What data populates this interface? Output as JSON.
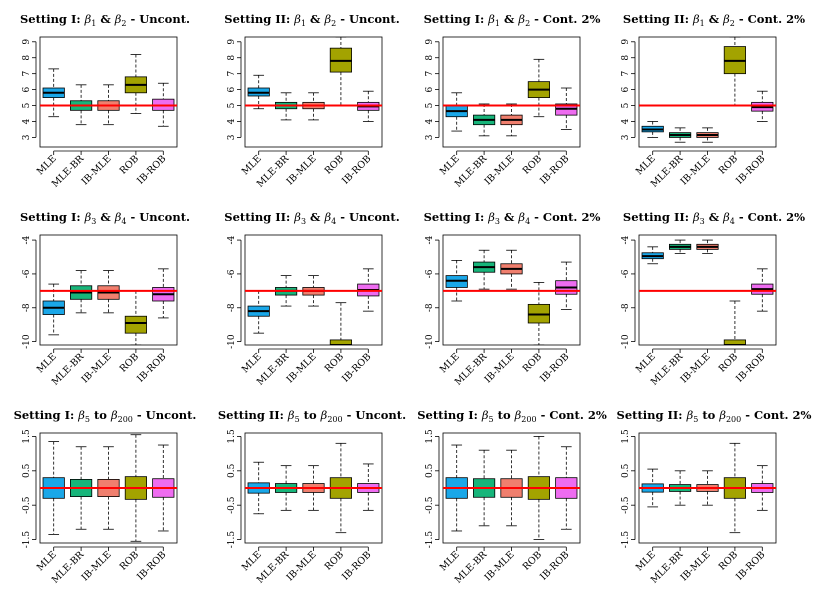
{
  "colors": {
    "MLE": "#1aa7e8",
    "MLE-BR": "#17b57a",
    "IB-MLE": "#f07f6e",
    "ROB": "#a3a300",
    "IB-ROB": "#ee6cf0",
    "reference": "#ff0000"
  },
  "chart_data": [
    {
      "type": "box",
      "title_prefix": "Setting I: ",
      "title_beta": "β",
      "title_sub_a": "1",
      "title_mid": " & ",
      "title_sub_b": "2",
      "title_suffix": " - Uncont.",
      "ylim": [
        2.4,
        9.3
      ],
      "yticks": [
        3,
        4,
        5,
        6,
        7,
        8,
        9
      ],
      "yticklabels": [
        "3",
        "4",
        "5",
        "6",
        "7",
        "8",
        "9"
      ],
      "reference": 5,
      "categories": [
        "MLE",
        "MLE-BR",
        "IB-MLE",
        "ROB",
        "IB-ROB"
      ],
      "boxes": [
        {
          "min": 4.3,
          "q1": 5.5,
          "median": 5.8,
          "q3": 6.1,
          "max": 7.3
        },
        {
          "min": 3.8,
          "q1": 4.7,
          "median": 5.0,
          "q3": 5.3,
          "max": 6.3
        },
        {
          "min": 3.8,
          "q1": 4.7,
          "median": 5.0,
          "q3": 5.3,
          "max": 6.3
        },
        {
          "min": 4.5,
          "q1": 5.8,
          "median": 6.3,
          "q3": 6.8,
          "max": 8.2
        },
        {
          "min": 3.7,
          "q1": 4.7,
          "median": 5.0,
          "q3": 5.4,
          "max": 6.4
        }
      ]
    },
    {
      "type": "box",
      "title_prefix": "Setting II: ",
      "title_beta": "β",
      "title_sub_a": "1",
      "title_mid": " & ",
      "title_sub_b": "2",
      "title_suffix": " - Uncont.",
      "ylim": [
        2.4,
        9.3
      ],
      "yticks": [
        3,
        4,
        5,
        6,
        7,
        8,
        9
      ],
      "yticklabels": [
        "3",
        "4",
        "5",
        "6",
        "7",
        "8",
        "9"
      ],
      "reference": 5,
      "categories": [
        "MLE",
        "MLE-BR",
        "IB-MLE",
        "ROB",
        "IB-ROB"
      ],
      "boxes": [
        {
          "min": 4.8,
          "q1": 5.6,
          "median": 5.8,
          "q3": 6.1,
          "max": 6.9
        },
        {
          "min": 4.1,
          "q1": 4.8,
          "median": 5.0,
          "q3": 5.2,
          "max": 5.8
        },
        {
          "min": 4.1,
          "q1": 4.8,
          "median": 5.0,
          "q3": 5.2,
          "max": 5.8
        },
        {
          "min": 5.0,
          "q1": 7.1,
          "median": 7.8,
          "q3": 8.6,
          "max": 9.3
        },
        {
          "min": 4.0,
          "q1": 4.7,
          "median": 4.95,
          "q3": 5.2,
          "max": 5.9
        }
      ]
    },
    {
      "type": "box",
      "title_prefix": "Setting I: ",
      "title_beta": "β",
      "title_sub_a": "1",
      "title_mid": " & ",
      "title_sub_b": "2",
      "title_suffix": " - Cont. 2%",
      "ylim": [
        2.4,
        9.3
      ],
      "yticks": [
        3,
        4,
        5,
        6,
        7,
        8,
        9
      ],
      "yticklabels": [
        "3",
        "4",
        "5",
        "6",
        "7",
        "8",
        "9"
      ],
      "reference": 5,
      "categories": [
        "MLE",
        "MLE-BR",
        "IB-MLE",
        "ROB",
        "IB-ROB"
      ],
      "boxes": [
        {
          "min": 3.4,
          "q1": 4.3,
          "median": 4.65,
          "q3": 5.0,
          "max": 5.8
        },
        {
          "min": 3.1,
          "q1": 3.8,
          "median": 4.1,
          "q3": 4.4,
          "max": 5.1
        },
        {
          "min": 3.1,
          "q1": 3.8,
          "median": 4.1,
          "q3": 4.4,
          "max": 5.1
        },
        {
          "min": 4.3,
          "q1": 5.5,
          "median": 6.0,
          "q3": 6.5,
          "max": 7.9
        },
        {
          "min": 3.5,
          "q1": 4.4,
          "median": 4.8,
          "q3": 5.1,
          "max": 6.1
        }
      ]
    },
    {
      "type": "box",
      "title_prefix": "Setting II: ",
      "title_beta": "β",
      "title_sub_a": "1",
      "title_mid": " & ",
      "title_sub_b": "2",
      "title_suffix": " - Cont. 2%",
      "ylim": [
        2.4,
        9.3
      ],
      "yticks": [
        3,
        4,
        5,
        6,
        7,
        8,
        9
      ],
      "yticklabels": [
        "3",
        "4",
        "5",
        "6",
        "7",
        "8",
        "9"
      ],
      "reference": 5,
      "categories": [
        "MLE",
        "MLE-BR",
        "IB-MLE",
        "ROB",
        "IB-ROB"
      ],
      "boxes": [
        {
          "min": 3.0,
          "q1": 3.35,
          "median": 3.5,
          "q3": 3.7,
          "max": 4.0
        },
        {
          "min": 2.7,
          "q1": 3.0,
          "median": 3.15,
          "q3": 3.3,
          "max": 3.6
        },
        {
          "min": 2.7,
          "q1": 3.0,
          "median": 3.15,
          "q3": 3.3,
          "max": 3.6
        },
        {
          "min": 5.0,
          "q1": 7.0,
          "median": 7.8,
          "q3": 8.7,
          "max": 9.3
        },
        {
          "min": 4.0,
          "q1": 4.65,
          "median": 4.9,
          "q3": 5.2,
          "max": 5.9
        }
      ]
    },
    {
      "type": "box",
      "title_prefix": "Setting I: ",
      "title_beta": "β",
      "title_sub_a": "3",
      "title_mid": " & ",
      "title_sub_b": "4",
      "title_suffix": " - Uncont.",
      "ylim": [
        -10.2,
        -3.7
      ],
      "yticks": [
        -4,
        -6,
        -8,
        -10
      ],
      "yticklabels": [
        "-4",
        "-6",
        "-8",
        "-10"
      ],
      "reference": -7,
      "categories": [
        "MLE",
        "MLE-BR",
        "IB-MLE",
        "ROB",
        "IB-ROB"
      ],
      "boxes": [
        {
          "min": -9.6,
          "q1": -8.4,
          "median": -8.0,
          "q3": -7.6,
          "max": -6.6
        },
        {
          "min": -8.3,
          "q1": -7.5,
          "median": -7.1,
          "q3": -6.7,
          "max": -5.8
        },
        {
          "min": -8.3,
          "q1": -7.5,
          "median": -7.1,
          "q3": -6.7,
          "max": -5.8
        },
        {
          "min": -10.2,
          "q1": -9.5,
          "median": -8.9,
          "q3": -8.5,
          "max": -7.0
        },
        {
          "min": -8.6,
          "q1": -7.6,
          "median": -7.2,
          "q3": -6.8,
          "max": -5.7
        }
      ]
    },
    {
      "type": "box",
      "title_prefix": "Setting II: ",
      "title_beta": "β",
      "title_sub_a": "3",
      "title_mid": " & ",
      "title_sub_b": "4",
      "title_suffix": " - Uncont.",
      "ylim": [
        -10.2,
        -3.7
      ],
      "yticks": [
        -4,
        -6,
        -8,
        -10
      ],
      "yticklabels": [
        "-4",
        "-6",
        "-8",
        "-10"
      ],
      "reference": -7,
      "categories": [
        "MLE",
        "MLE-BR",
        "IB-MLE",
        "ROB",
        "IB-ROB"
      ],
      "boxes": [
        {
          "min": -9.5,
          "q1": -8.5,
          "median": -8.2,
          "q3": -7.9,
          "max": -7.0
        },
        {
          "min": -7.9,
          "q1": -7.25,
          "median": -7.0,
          "q3": -6.8,
          "max": -6.1
        },
        {
          "min": -7.9,
          "q1": -7.25,
          "median": -7.0,
          "q3": -6.8,
          "max": -6.1
        },
        {
          "min": -10.4,
          "q1": -10.4,
          "median": -10.2,
          "q3": -9.9,
          "max": -7.7
        },
        {
          "min": -8.2,
          "q1": -7.3,
          "median": -6.95,
          "q3": -6.6,
          "max": -5.7
        }
      ]
    },
    {
      "type": "box",
      "title_prefix": "Setting I: ",
      "title_beta": "β",
      "title_sub_a": "3",
      "title_mid": " & ",
      "title_sub_b": "4",
      "title_suffix": " - Cont. 2%",
      "ylim": [
        -10.2,
        -3.7
      ],
      "yticks": [
        -4,
        -6,
        -8,
        -10
      ],
      "yticklabels": [
        "-4",
        "-6",
        "-8",
        "-10"
      ],
      "reference": -7,
      "categories": [
        "MLE",
        "MLE-BR",
        "IB-MLE",
        "ROB",
        "IB-ROB"
      ],
      "boxes": [
        {
          "min": -7.6,
          "q1": -6.8,
          "median": -6.4,
          "q3": -6.1,
          "max": -5.2
        },
        {
          "min": -6.9,
          "q1": -5.9,
          "median": -5.6,
          "q3": -5.3,
          "max": -4.6
        },
        {
          "min": -6.9,
          "q1": -6.0,
          "median": -5.7,
          "q3": -5.4,
          "max": -4.6
        },
        {
          "min": -10.2,
          "q1": -8.9,
          "median": -8.4,
          "q3": -7.8,
          "max": -6.5
        },
        {
          "min": -8.1,
          "q1": -7.2,
          "median": -6.8,
          "q3": -6.4,
          "max": -5.3
        }
      ]
    },
    {
      "type": "box",
      "title_prefix": "Setting II: ",
      "title_beta": "β",
      "title_sub_a": "3",
      "title_mid": " & ",
      "title_sub_b": "4",
      "title_suffix": " - Cont. 2%",
      "ylim": [
        -10.2,
        -3.7
      ],
      "yticks": [
        -4,
        -6,
        -8,
        -10
      ],
      "yticklabels": [
        "-4",
        "-6",
        "-8",
        "-10"
      ],
      "reference": -7,
      "categories": [
        "MLE",
        "MLE-BR",
        "IB-MLE",
        "ROB",
        "IB-ROB"
      ],
      "boxes": [
        {
          "min": -5.4,
          "q1": -5.1,
          "median": -4.95,
          "q3": -4.75,
          "max": -4.4
        },
        {
          "min": -4.8,
          "q1": -4.55,
          "median": -4.4,
          "q3": -4.25,
          "max": -4.0
        },
        {
          "min": -4.8,
          "q1": -4.55,
          "median": -4.4,
          "q3": -4.25,
          "max": -4.0
        },
        {
          "min": -10.4,
          "q1": -10.4,
          "median": -10.2,
          "q3": -9.9,
          "max": -7.6
        },
        {
          "min": -8.2,
          "q1": -7.2,
          "median": -6.9,
          "q3": -6.6,
          "max": -5.7
        }
      ]
    },
    {
      "type": "box",
      "title_prefix": "Setting I: ",
      "title_beta": "β",
      "title_sub_a": "5",
      "title_mid": " to ",
      "title_sub_b": "200",
      "title_suffix": " - Uncont.",
      "ylim": [
        -1.6,
        1.6
      ],
      "yticks": [
        1.5,
        0.5,
        -0.5,
        -1.5
      ],
      "yticklabels": [
        "1.5",
        "0.5",
        "-0.5",
        "-1.5"
      ],
      "reference": 0,
      "categories": [
        "MLE",
        "MLE-BR",
        "IB-MLE",
        "ROB",
        "IB-ROB"
      ],
      "boxes": [
        {
          "min": -1.35,
          "q1": -0.3,
          "median": 0.0,
          "q3": 0.3,
          "max": 1.35
        },
        {
          "min": -1.2,
          "q1": -0.25,
          "median": 0.0,
          "q3": 0.25,
          "max": 1.2
        },
        {
          "min": -1.2,
          "q1": -0.25,
          "median": 0.0,
          "q3": 0.25,
          "max": 1.2
        },
        {
          "min": -1.55,
          "q1": -0.33,
          "median": 0.0,
          "q3": 0.33,
          "max": 1.55
        },
        {
          "min": -1.25,
          "q1": -0.27,
          "median": 0.0,
          "q3": 0.27,
          "max": 1.25
        }
      ]
    },
    {
      "type": "box",
      "title_prefix": "Setting II: ",
      "title_beta": "β",
      "title_sub_a": "5",
      "title_mid": " to ",
      "title_sub_b": "200",
      "title_suffix": " - Uncont.",
      "ylim": [
        -1.6,
        1.6
      ],
      "yticks": [
        1.5,
        0.5,
        -0.5,
        -1.5
      ],
      "yticklabels": [
        "1.5",
        "0.5",
        "-0.5",
        "-1.5"
      ],
      "reference": 0,
      "categories": [
        "MLE",
        "MLE-BR",
        "IB-MLE",
        "ROB",
        "IB-ROB"
      ],
      "boxes": [
        {
          "min": -0.75,
          "q1": -0.15,
          "median": 0.0,
          "q3": 0.15,
          "max": 0.75
        },
        {
          "min": -0.65,
          "q1": -0.13,
          "median": 0.0,
          "q3": 0.13,
          "max": 0.65
        },
        {
          "min": -0.65,
          "q1": -0.13,
          "median": 0.0,
          "q3": 0.13,
          "max": 0.65
        },
        {
          "min": -1.3,
          "q1": -0.3,
          "median": 0.0,
          "q3": 0.3,
          "max": 1.3
        },
        {
          "min": -0.65,
          "q1": -0.13,
          "median": 0.0,
          "q3": 0.13,
          "max": 0.7
        }
      ]
    },
    {
      "type": "box",
      "title_prefix": "Setting I: ",
      "title_beta": "β",
      "title_sub_a": "5",
      "title_mid": " to ",
      "title_sub_b": "200",
      "title_suffix": " - Cont. 2%",
      "ylim": [
        -1.6,
        1.6
      ],
      "yticks": [
        1.5,
        0.5,
        -0.5,
        -1.5
      ],
      "yticklabels": [
        "1.5",
        "0.5",
        "-0.5",
        "-1.5"
      ],
      "reference": 0,
      "categories": [
        "MLE",
        "MLE-BR",
        "IB-MLE",
        "ROB",
        "IB-ROB"
      ],
      "boxes": [
        {
          "min": -1.25,
          "q1": -0.3,
          "median": 0.0,
          "q3": 0.3,
          "max": 1.25
        },
        {
          "min": -1.1,
          "q1": -0.27,
          "median": 0.0,
          "q3": 0.27,
          "max": 1.1
        },
        {
          "min": -1.1,
          "q1": -0.27,
          "median": 0.0,
          "q3": 0.27,
          "max": 1.1
        },
        {
          "min": -1.5,
          "q1": -0.33,
          "median": 0.0,
          "q3": 0.33,
          "max": 1.5
        },
        {
          "min": -1.2,
          "q1": -0.3,
          "median": 0.0,
          "q3": 0.3,
          "max": 1.2
        }
      ]
    },
    {
      "type": "box",
      "title_prefix": "Setting II: ",
      "title_beta": "β",
      "title_sub_a": "5",
      "title_mid": " to ",
      "title_sub_b": "200",
      "title_suffix": " - Cont. 2%",
      "ylim": [
        -1.6,
        1.6
      ],
      "yticks": [
        1.5,
        0.5,
        -0.5,
        -1.5
      ],
      "yticklabels": [
        "1.5",
        "0.5",
        "-0.5",
        "-1.5"
      ],
      "reference": 0,
      "categories": [
        "MLE",
        "MLE-BR",
        "IB-MLE",
        "ROB",
        "IB-ROB"
      ],
      "boxes": [
        {
          "min": -0.55,
          "q1": -0.12,
          "median": 0.0,
          "q3": 0.12,
          "max": 0.55
        },
        {
          "min": -0.5,
          "q1": -0.1,
          "median": 0.0,
          "q3": 0.1,
          "max": 0.5
        },
        {
          "min": -0.5,
          "q1": -0.1,
          "median": 0.0,
          "q3": 0.1,
          "max": 0.5
        },
        {
          "min": -1.3,
          "q1": -0.3,
          "median": 0.0,
          "q3": 0.3,
          "max": 1.3
        },
        {
          "min": -0.65,
          "q1": -0.13,
          "median": 0.0,
          "q3": 0.13,
          "max": 0.65
        }
      ]
    }
  ]
}
